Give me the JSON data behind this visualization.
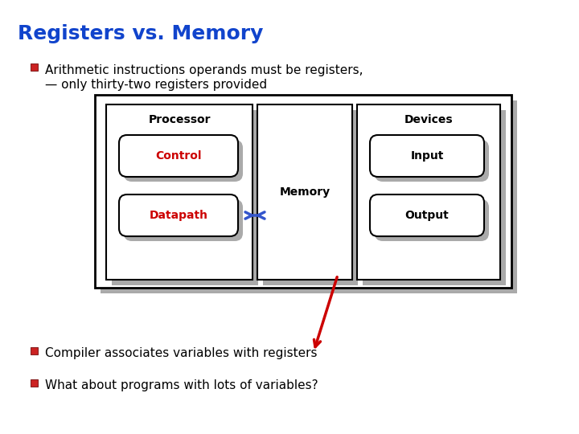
{
  "title": "Registers vs. Memory",
  "title_color": "#1144CC",
  "title_fontsize": 18,
  "bg_color": "#FFFFFF",
  "bullet_color": "#CC0000",
  "bullet_text_color": "#000000",
  "bullet1": "Arithmetic instructions operands must be registers,",
  "bullet1b": "— only thirty-two registers provided",
  "bullet2": "Compiler associates variables with registers",
  "bullet3": "What about programs with lots of variables?",
  "processor_label": "Processor",
  "memory_label": "Memory",
  "devices_label": "Devices",
  "control_label": "Control",
  "control_color": "#CC0000",
  "datapath_label": "Datapath",
  "datapath_color": "#CC0000",
  "input_label": "Input",
  "output_label": "Output",
  "shadow_color": "#AAAAAA",
  "box_ec": "#000000"
}
